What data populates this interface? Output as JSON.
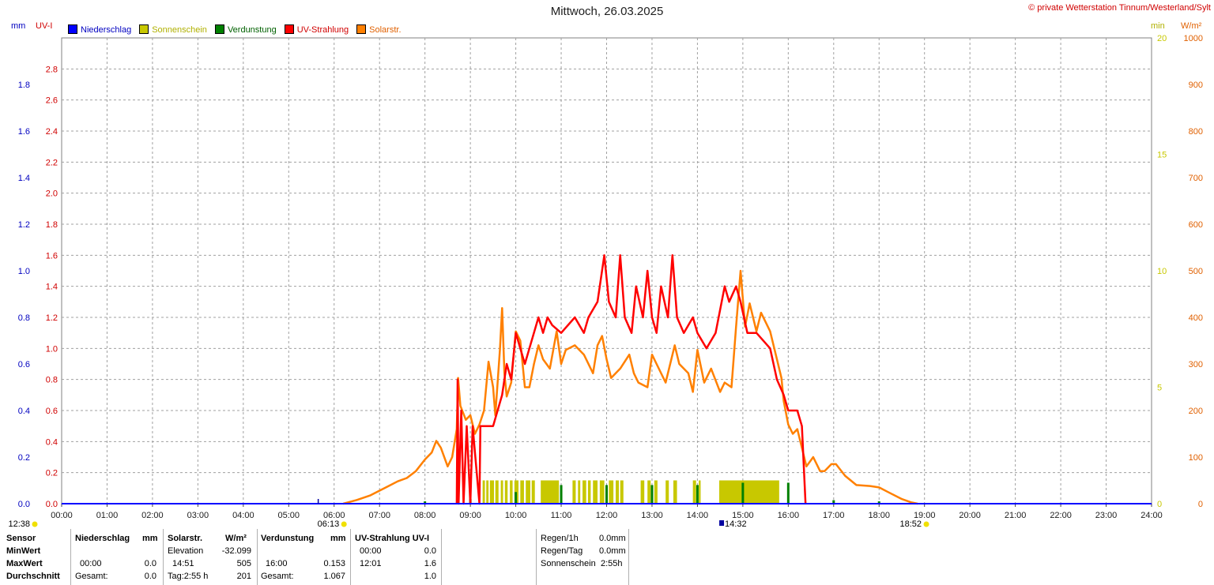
{
  "header": {
    "title": "Mittwoch, 26.03.2025",
    "copyright": "© private Wetterstation Tinnum/Westerland/Sylt"
  },
  "units": {
    "left1": "mm",
    "left2": "UV-I",
    "right1": "min",
    "right2": "W/m²"
  },
  "legend": [
    {
      "label": "Niederschlag",
      "color": "#0000ff",
      "text_color": "#0000c0"
    },
    {
      "label": "Sonnenschein",
      "color": "#c8c800",
      "text_color": "#b0b000"
    },
    {
      "label": "Verdunstung",
      "color": "#008000",
      "text_color": "#006000"
    },
    {
      "label": "UV-Strahlung",
      "color": "#ff0000",
      "text_color": "#d00000"
    },
    {
      "label": "Solarstr.",
      "color": "#ff8000",
      "text_color": "#e06000"
    }
  ],
  "chart_data": {
    "type": "line",
    "x_ticks": [
      "00:00",
      "01:00",
      "02:00",
      "03:00",
      "04:00",
      "05:00",
      "06:00",
      "07:00",
      "08:00",
      "09:00",
      "10:00",
      "11:00",
      "12:00",
      "13:00",
      "14:00",
      "15:00",
      "16:00",
      "17:00",
      "18:00",
      "19:00",
      "20:00",
      "21:00",
      "22:00",
      "23:00",
      "24:00"
    ],
    "axes": {
      "mm": {
        "range": [
          0,
          2.0
        ],
        "ticks": [
          "0.0",
          "0.2",
          "0.4",
          "0.6",
          "0.8",
          "1.0",
          "1.2",
          "1.4",
          "1.6",
          "1.8"
        ],
        "color": "#0000c0"
      },
      "uv": {
        "range": [
          0,
          3.0
        ],
        "ticks": [
          "0.0",
          "0.2",
          "0.4",
          "0.6",
          "0.8",
          "1.0",
          "1.2",
          "1.4",
          "1.6",
          "1.8",
          "2.0",
          "2.2",
          "2.4",
          "2.6",
          "2.8"
        ],
        "color": "#d00000"
      },
      "min": {
        "range": [
          0,
          20
        ],
        "ticks": [
          "0",
          "5",
          "10",
          "15",
          "20"
        ],
        "color": "#c8c800"
      },
      "wm2": {
        "range": [
          0,
          1000
        ],
        "ticks": [
          "0",
          "100",
          "200",
          "300",
          "400",
          "500",
          "600",
          "700",
          "800",
          "900",
          "1000"
        ],
        "color": "#e06000"
      }
    },
    "grid": true,
    "series": [
      {
        "name": "Solarstr.",
        "axis": "wm2",
        "color": "#ff8000",
        "points": [
          [
            6.2,
            0
          ],
          [
            6.5,
            8
          ],
          [
            6.8,
            18
          ],
          [
            7.0,
            28
          ],
          [
            7.2,
            38
          ],
          [
            7.4,
            48
          ],
          [
            7.6,
            55
          ],
          [
            7.8,
            70
          ],
          [
            8.0,
            95
          ],
          [
            8.15,
            110
          ],
          [
            8.25,
            135
          ],
          [
            8.35,
            120
          ],
          [
            8.5,
            80
          ],
          [
            8.6,
            100
          ],
          [
            8.7,
            160
          ],
          [
            8.73,
            270
          ],
          [
            8.78,
            210
          ],
          [
            8.9,
            180
          ],
          [
            9.0,
            190
          ],
          [
            9.1,
            150
          ],
          [
            9.2,
            170
          ],
          [
            9.3,
            200
          ],
          [
            9.4,
            305
          ],
          [
            9.5,
            250
          ],
          [
            9.55,
            190
          ],
          [
            9.65,
            330
          ],
          [
            9.7,
            420
          ],
          [
            9.75,
            280
          ],
          [
            9.8,
            230
          ],
          [
            9.9,
            260
          ],
          [
            10.0,
            370
          ],
          [
            10.1,
            350
          ],
          [
            10.2,
            250
          ],
          [
            10.3,
            250
          ],
          [
            10.4,
            300
          ],
          [
            10.5,
            340
          ],
          [
            10.6,
            310
          ],
          [
            10.75,
            290
          ],
          [
            10.9,
            370
          ],
          [
            11.0,
            300
          ],
          [
            11.1,
            330
          ],
          [
            11.3,
            340
          ],
          [
            11.5,
            320
          ],
          [
            11.7,
            280
          ],
          [
            11.8,
            340
          ],
          [
            11.9,
            360
          ],
          [
            12.0,
            310
          ],
          [
            12.1,
            270
          ],
          [
            12.3,
            290
          ],
          [
            12.5,
            320
          ],
          [
            12.6,
            280
          ],
          [
            12.7,
            260
          ],
          [
            12.9,
            250
          ],
          [
            13.0,
            320
          ],
          [
            13.1,
            300
          ],
          [
            13.3,
            260
          ],
          [
            13.5,
            340
          ],
          [
            13.6,
            300
          ],
          [
            13.8,
            280
          ],
          [
            13.9,
            240
          ],
          [
            14.0,
            330
          ],
          [
            14.15,
            260
          ],
          [
            14.3,
            290
          ],
          [
            14.5,
            240
          ],
          [
            14.6,
            260
          ],
          [
            14.75,
            250
          ],
          [
            14.85,
            380
          ],
          [
            14.95,
            500
          ],
          [
            15.05,
            380
          ],
          [
            15.15,
            430
          ],
          [
            15.3,
            370
          ],
          [
            15.4,
            410
          ],
          [
            15.6,
            370
          ],
          [
            15.75,
            310
          ],
          [
            15.85,
            270
          ],
          [
            15.9,
            220
          ],
          [
            16.0,
            170
          ],
          [
            16.1,
            150
          ],
          [
            16.2,
            160
          ],
          [
            16.3,
            120
          ],
          [
            16.4,
            80
          ],
          [
            16.55,
            100
          ],
          [
            16.7,
            70
          ],
          [
            16.8,
            70
          ],
          [
            16.95,
            85
          ],
          [
            17.05,
            85
          ],
          [
            17.25,
            60
          ],
          [
            17.5,
            40
          ],
          [
            17.8,
            38
          ],
          [
            18.0,
            35
          ],
          [
            18.2,
            25
          ],
          [
            18.5,
            10
          ],
          [
            18.7,
            3
          ],
          [
            18.85,
            0
          ]
        ]
      },
      {
        "name": "UV-Strahlung",
        "axis": "uv",
        "color": "#ff0000",
        "points": [
          [
            8.7,
            0
          ],
          [
            8.72,
            0.8
          ],
          [
            8.74,
            0
          ],
          [
            8.8,
            0.6
          ],
          [
            8.85,
            0
          ],
          [
            8.92,
            0.5
          ],
          [
            9.0,
            0
          ],
          [
            9.05,
            0.5
          ],
          [
            9.2,
            0
          ],
          [
            9.22,
            0.5
          ],
          [
            9.5,
            0.5
          ],
          [
            9.7,
            0.7
          ],
          [
            9.8,
            0.9
          ],
          [
            9.9,
            0.8
          ],
          [
            10.0,
            1.1
          ],
          [
            10.1,
            1.0
          ],
          [
            10.2,
            0.9
          ],
          [
            10.3,
            1.0
          ],
          [
            10.5,
            1.2
          ],
          [
            10.6,
            1.1
          ],
          [
            10.7,
            1.2
          ],
          [
            10.8,
            1.15
          ],
          [
            11.0,
            1.1
          ],
          [
            11.3,
            1.2
          ],
          [
            11.5,
            1.1
          ],
          [
            11.6,
            1.2
          ],
          [
            11.8,
            1.3
          ],
          [
            11.95,
            1.6
          ],
          [
            12.05,
            1.3
          ],
          [
            12.2,
            1.2
          ],
          [
            12.3,
            1.6
          ],
          [
            12.4,
            1.2
          ],
          [
            12.55,
            1.1
          ],
          [
            12.65,
            1.4
          ],
          [
            12.8,
            1.2
          ],
          [
            12.9,
            1.5
          ],
          [
            13.0,
            1.2
          ],
          [
            13.1,
            1.1
          ],
          [
            13.2,
            1.4
          ],
          [
            13.35,
            1.2
          ],
          [
            13.45,
            1.6
          ],
          [
            13.55,
            1.2
          ],
          [
            13.7,
            1.1
          ],
          [
            13.9,
            1.2
          ],
          [
            14.0,
            1.1
          ],
          [
            14.2,
            1.0
          ],
          [
            14.4,
            1.1
          ],
          [
            14.6,
            1.4
          ],
          [
            14.7,
            1.3
          ],
          [
            14.85,
            1.4
          ],
          [
            14.95,
            1.3
          ],
          [
            15.1,
            1.1
          ],
          [
            15.3,
            1.1
          ],
          [
            15.6,
            1.0
          ],
          [
            15.75,
            0.8
          ],
          [
            15.9,
            0.7
          ],
          [
            16.0,
            0.6
          ],
          [
            16.2,
            0.6
          ],
          [
            16.3,
            0.5
          ],
          [
            16.38,
            0.0
          ]
        ]
      }
    ],
    "bars": [
      {
        "name": "Sonnenschein",
        "axis": "min",
        "color": "#c8c800",
        "segments": [
          [
            9.27,
            9.32
          ],
          [
            9.35,
            9.4
          ],
          [
            9.43,
            9.52
          ],
          [
            9.55,
            9.62
          ],
          [
            9.67,
            9.72
          ],
          [
            9.76,
            9.82
          ],
          [
            9.87,
            9.93
          ],
          [
            9.97,
            10.06
          ],
          [
            10.1,
            10.18
          ],
          [
            10.22,
            10.32
          ],
          [
            10.35,
            10.42
          ],
          [
            10.55,
            10.95
          ],
          [
            11.25,
            11.32
          ],
          [
            11.37,
            11.42
          ],
          [
            11.47,
            11.55
          ],
          [
            11.59,
            11.65
          ],
          [
            11.7,
            11.8
          ],
          [
            11.85,
            11.95
          ],
          [
            12.05,
            12.15
          ],
          [
            12.2,
            12.27
          ],
          [
            12.3,
            12.37
          ],
          [
            12.75,
            12.83
          ],
          [
            12.9,
            12.97
          ],
          [
            13.05,
            13.12
          ],
          [
            13.3,
            13.37
          ],
          [
            13.47,
            13.55
          ],
          [
            13.9,
            13.97
          ],
          [
            14.03,
            14.07
          ],
          [
            14.48,
            15.8
          ]
        ],
        "height": 1
      },
      {
        "name": "Verdunstung",
        "axis": "mm",
        "color": "#008000",
        "spikes": [
          [
            8.0,
            0.01
          ],
          [
            9.0,
            0.02
          ],
          [
            10.0,
            0.05
          ],
          [
            11.0,
            0.08
          ],
          [
            12.0,
            0.08
          ],
          [
            13.0,
            0.08
          ],
          [
            14.0,
            0.08
          ],
          [
            15.0,
            0.09
          ],
          [
            16.0,
            0.09
          ],
          [
            17.0,
            0.015
          ],
          [
            18.0,
            0.01
          ]
        ]
      }
    ],
    "markers": {
      "moonrise": "06:13",
      "sunrise_label": "06:13",
      "noon": "14:32",
      "sunset": "18:52",
      "left_time": "12:38"
    }
  },
  "footer": {
    "headers": {
      "sensor": "Sensor",
      "niederschlag": "Niederschlag",
      "mm1": "mm",
      "solar": "Solarstr.",
      "wm2": "W/m²",
      "verdunstung": "Verdunstung",
      "mm2": "mm",
      "uv": "UV-Strahlung UV-I"
    },
    "rows": [
      {
        "label": "MinWert",
        "n_time": "",
        "n_val": "",
        "s_time": "Elevation",
        "s_val": "-32.099",
        "v_time": "",
        "v_val": "",
        "u_time": "00:00",
        "u_val": "0.0"
      },
      {
        "label": "MaxWert",
        "n_time": "00:00",
        "n_val": "0.0",
        "s_time": "14:51",
        "s_val": "505",
        "v_time": "16:00",
        "v_val": "0.153",
        "u_time": "12:01",
        "u_val": "1.6"
      },
      {
        "label": "Durchschnitt",
        "n_time": "Gesamt:",
        "n_val": "0.0",
        "s_time": "Tag:2:55 h",
        "s_val": "201",
        "v_time": "Gesamt:",
        "v_val": "1.067",
        "u_time": "",
        "u_val": "1.0"
      }
    ],
    "extra": [
      {
        "label": "Regen/1h",
        "value": "0.0mm"
      },
      {
        "label": "Regen/Tag",
        "value": "0.0mm"
      },
      {
        "label": "Sonnenschein",
        "value": "2:55h"
      }
    ]
  }
}
